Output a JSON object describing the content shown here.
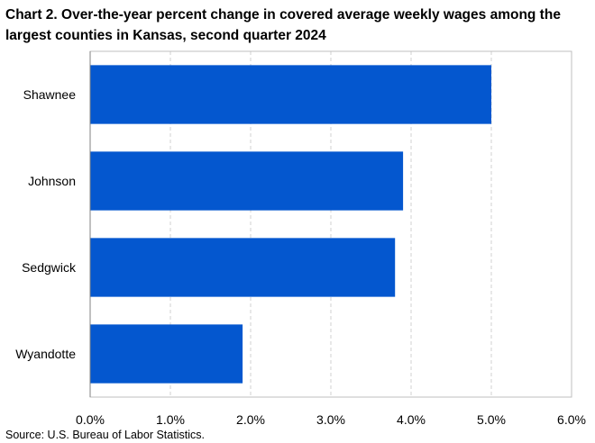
{
  "title": "Chart 2. Over-the-year percent change in covered average weekly wages among the largest counties in Kansas, second quarter 2024",
  "source": "Source: U.S. Bureau of Labor Statistics.",
  "colors": {
    "bar": "#0457CF",
    "grid": "#D0D0D0",
    "frame": "#BFBFBF"
  },
  "chart_data": {
    "type": "bar",
    "orientation": "horizontal",
    "title": "Chart 2. Over-the-year percent change in covered average weekly wages among the largest counties in Kansas, second quarter 2024",
    "categories": [
      "Shawnee",
      "Johnson",
      "Sedgwick",
      "Wyandotte"
    ],
    "values": [
      5.0,
      3.9,
      3.8,
      1.9
    ],
    "xlim": [
      0,
      6
    ],
    "ticks": [
      0,
      1,
      2,
      3,
      4,
      5,
      6
    ],
    "tick_labels": [
      "0.0%",
      "1.0%",
      "2.0%",
      "3.0%",
      "4.0%",
      "5.0%",
      "6.0%"
    ],
    "xlabel": "",
    "ylabel": "",
    "grid": "vertical dashed",
    "legend": "none"
  }
}
